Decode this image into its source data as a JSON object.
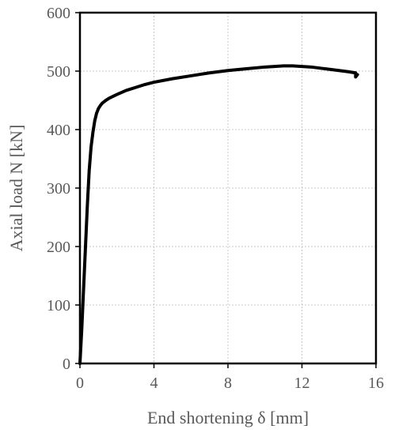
{
  "chart_data": {
    "type": "line",
    "title": "",
    "xlabel": "End shortening δ [mm]",
    "ylabel": "Axial load N [kN]",
    "xlim": [
      0,
      16
    ],
    "ylim": [
      0,
      600
    ],
    "xticks": [
      0,
      4,
      8,
      12,
      16
    ],
    "yticks": [
      0,
      100,
      200,
      300,
      400,
      500,
      600
    ],
    "xtick_labels": [
      "0",
      "4",
      "8",
      "12",
      "16"
    ],
    "ytick_labels": [
      "0",
      "100",
      "200",
      "300",
      "400",
      "500",
      "600"
    ],
    "grid": true,
    "legend": "none",
    "series": [
      {
        "color": "#000000",
        "x": [
          0,
          0.1,
          0.2,
          0.3,
          0.4,
          0.5,
          0.6,
          0.7,
          0.8,
          0.9,
          1.0,
          1.1,
          1.2,
          1.4,
          1.6,
          1.8,
          2.0,
          2.5,
          3.0,
          3.5,
          4.0,
          5.0,
          6.0,
          7.0,
          8.0,
          9.0,
          10.0,
          10.5,
          11.0,
          11.5,
          12.0,
          12.5,
          13.0,
          13.5,
          14.0,
          14.5,
          14.9,
          14.9,
          15.0
        ],
        "y": [
          0,
          60,
          130,
          200,
          270,
          330,
          370,
          395,
          415,
          428,
          436,
          441,
          445,
          450,
          454,
          457,
          460,
          467,
          472,
          477,
          481,
          487,
          492,
          497,
          501,
          504,
          507,
          508,
          509,
          509,
          508,
          507,
          505,
          503,
          501,
          499,
          497,
          490,
          494
        ]
      }
    ]
  }
}
